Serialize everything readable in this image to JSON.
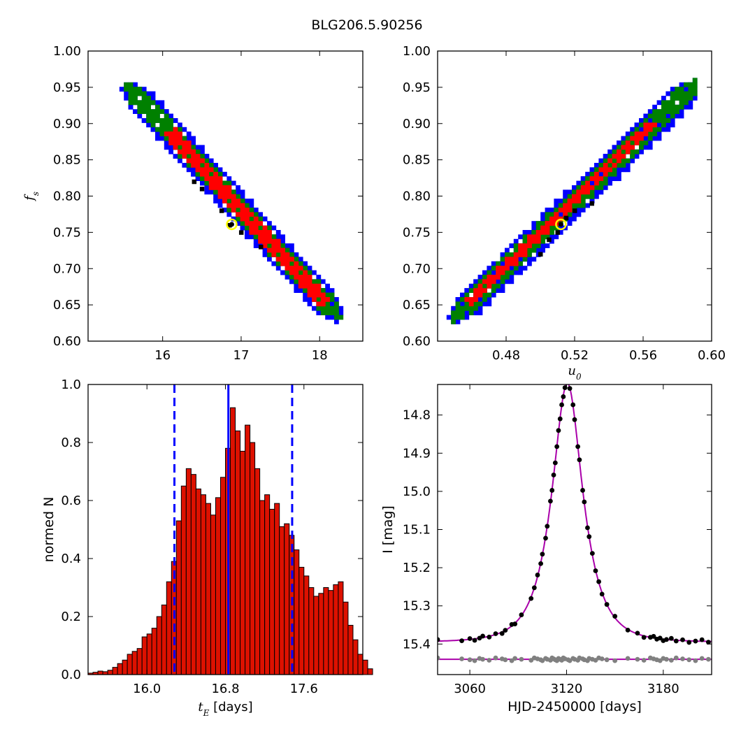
{
  "title": "BLG206.5.90256",
  "colors": {
    "blue": "#0000ff",
    "green": "#008000",
    "red": "#ff0000",
    "black": "#000000",
    "marker": "#ffff00",
    "curve": "#aa00aa",
    "gray": "#808080",
    "bar": "#dd1100"
  },
  "chart_data": [
    {
      "id": "tE-fs",
      "type": "heatmap",
      "xlim": [
        15.05,
        18.55
      ],
      "ylim": [
        0.6,
        1.0
      ],
      "xticks": [
        "16",
        "17",
        "18"
      ],
      "yticks": [
        "0.60",
        "0.65",
        "0.70",
        "0.75",
        "0.80",
        "0.85",
        "0.90",
        "0.95",
        "1.00"
      ],
      "xlabel": "",
      "ylabel": "f",
      "ylabel_sub": "s",
      "band": {
        "start": [
          15.5,
          0.955
        ],
        "end": [
          18.2,
          0.635
        ],
        "levels": [
          {
            "name": "blue",
            "halfwidth": 0.018
          },
          {
            "name": "green",
            "halfwidth": 0.012
          },
          {
            "name": "red",
            "halfwidth": 0.008,
            "range": [
              16.05,
              18.05
            ]
          }
        ]
      },
      "black_points": [
        [
          16.4,
          0.82
        ],
        [
          16.5,
          0.81
        ],
        [
          16.75,
          0.78
        ],
        [
          16.85,
          0.76
        ],
        [
          17.0,
          0.75
        ],
        [
          17.25,
          0.73
        ]
      ],
      "best_fit": [
        16.88,
        0.761
      ]
    },
    {
      "id": "u0-fs",
      "type": "heatmap",
      "xlim": [
        0.44,
        0.6
      ],
      "ylim": [
        0.6,
        1.0
      ],
      "xticks": [
        "0.48",
        "0.52",
        "0.56",
        "0.60"
      ],
      "yticks": [
        "0.60",
        "0.65",
        "0.70",
        "0.75",
        "0.80",
        "0.85",
        "0.90",
        "0.95",
        "1.00"
      ],
      "xlabel": "u",
      "xlabel_sub": "0",
      "ylabel": "",
      "band": {
        "start": [
          0.448,
          0.632
        ],
        "end": [
          0.59,
          0.958
        ],
        "levels": [
          {
            "name": "blue",
            "halfwidth": 0.016
          },
          {
            "name": "green",
            "halfwidth": 0.011
          },
          {
            "name": "red",
            "halfwidth": 0.006,
            "range": [
              0.458,
              0.565
            ]
          }
        ]
      },
      "black_points": [
        [
          0.5,
          0.72
        ],
        [
          0.505,
          0.74
        ],
        [
          0.51,
          0.75
        ],
        [
          0.515,
          0.77
        ],
        [
          0.52,
          0.78
        ],
        [
          0.53,
          0.79
        ]
      ],
      "best_fit": [
        0.512,
        0.761
      ]
    },
    {
      "id": "tE-hist",
      "type": "bar",
      "xlim": [
        15.4,
        18.2
      ],
      "ylim": [
        0,
        1.0
      ],
      "xticks": [
        "16.0",
        "16.8",
        "17.6"
      ],
      "yticks": [
        "0.0",
        "0.2",
        "0.4",
        "0.6",
        "0.8",
        "1.0"
      ],
      "xlabel": "t",
      "xlabel_sub": "E",
      "xlabel_suffix": " [days]",
      "ylabel": "normed N",
      "bin_start": 15.4,
      "bin_width": 0.05,
      "values": [
        0.005,
        0.008,
        0.012,
        0.01,
        0.015,
        0.025,
        0.038,
        0.05,
        0.07,
        0.08,
        0.09,
        0.13,
        0.14,
        0.16,
        0.2,
        0.24,
        0.32,
        0.39,
        0.53,
        0.65,
        0.71,
        0.69,
        0.64,
        0.62,
        0.59,
        0.55,
        0.61,
        0.68,
        0.78,
        0.92,
        0.84,
        0.77,
        0.86,
        0.8,
        0.71,
        0.6,
        0.62,
        0.57,
        0.59,
        0.51,
        0.52,
        0.48,
        0.43,
        0.37,
        0.34,
        0.3,
        0.27,
        0.28,
        0.3,
        0.29,
        0.31,
        0.32,
        0.25,
        0.17,
        0.12,
        0.07,
        0.05,
        0.02
      ],
      "vline_solid": 16.83,
      "vlines_dashed": [
        16.28,
        17.48
      ]
    },
    {
      "id": "lightcurve",
      "type": "scatter",
      "xlim": [
        3040,
        3210
      ],
      "ylim": [
        15.48,
        14.72
      ],
      "xticks": [
        "3060",
        "3120",
        "3180"
      ],
      "yticks": [
        "14.8",
        "14.9",
        "15.0",
        "15.1",
        "15.2",
        "15.3",
        "15.4"
      ],
      "xlabel": "HJD-2450000 [days]",
      "ylabel": "I [mag]",
      "model": {
        "t0": 3120.5,
        "tE": 16.9,
        "u0": 0.512,
        "fs": 0.761,
        "baseline": 15.395
      },
      "baseline_line": 15.44,
      "points": [
        3040,
        3055,
        3060,
        3063,
        3066,
        3068,
        3072,
        3076,
        3080,
        3082,
        3086,
        3088,
        3092,
        3098,
        3100,
        3102,
        3104,
        3105,
        3107,
        3108,
        3110,
        3111,
        3112,
        3113,
        3114,
        3115,
        3116,
        3117,
        3118,
        3119,
        3121,
        3122,
        3124,
        3125,
        3127,
        3128,
        3130,
        3131,
        3133,
        3134,
        3136,
        3138,
        3140,
        3142,
        3145,
        3150,
        3158,
        3164,
        3168,
        3172,
        3174,
        3176,
        3178,
        3180,
        3182,
        3185,
        3188,
        3192,
        3196,
        3200,
        3204,
        3208
      ]
    }
  ]
}
